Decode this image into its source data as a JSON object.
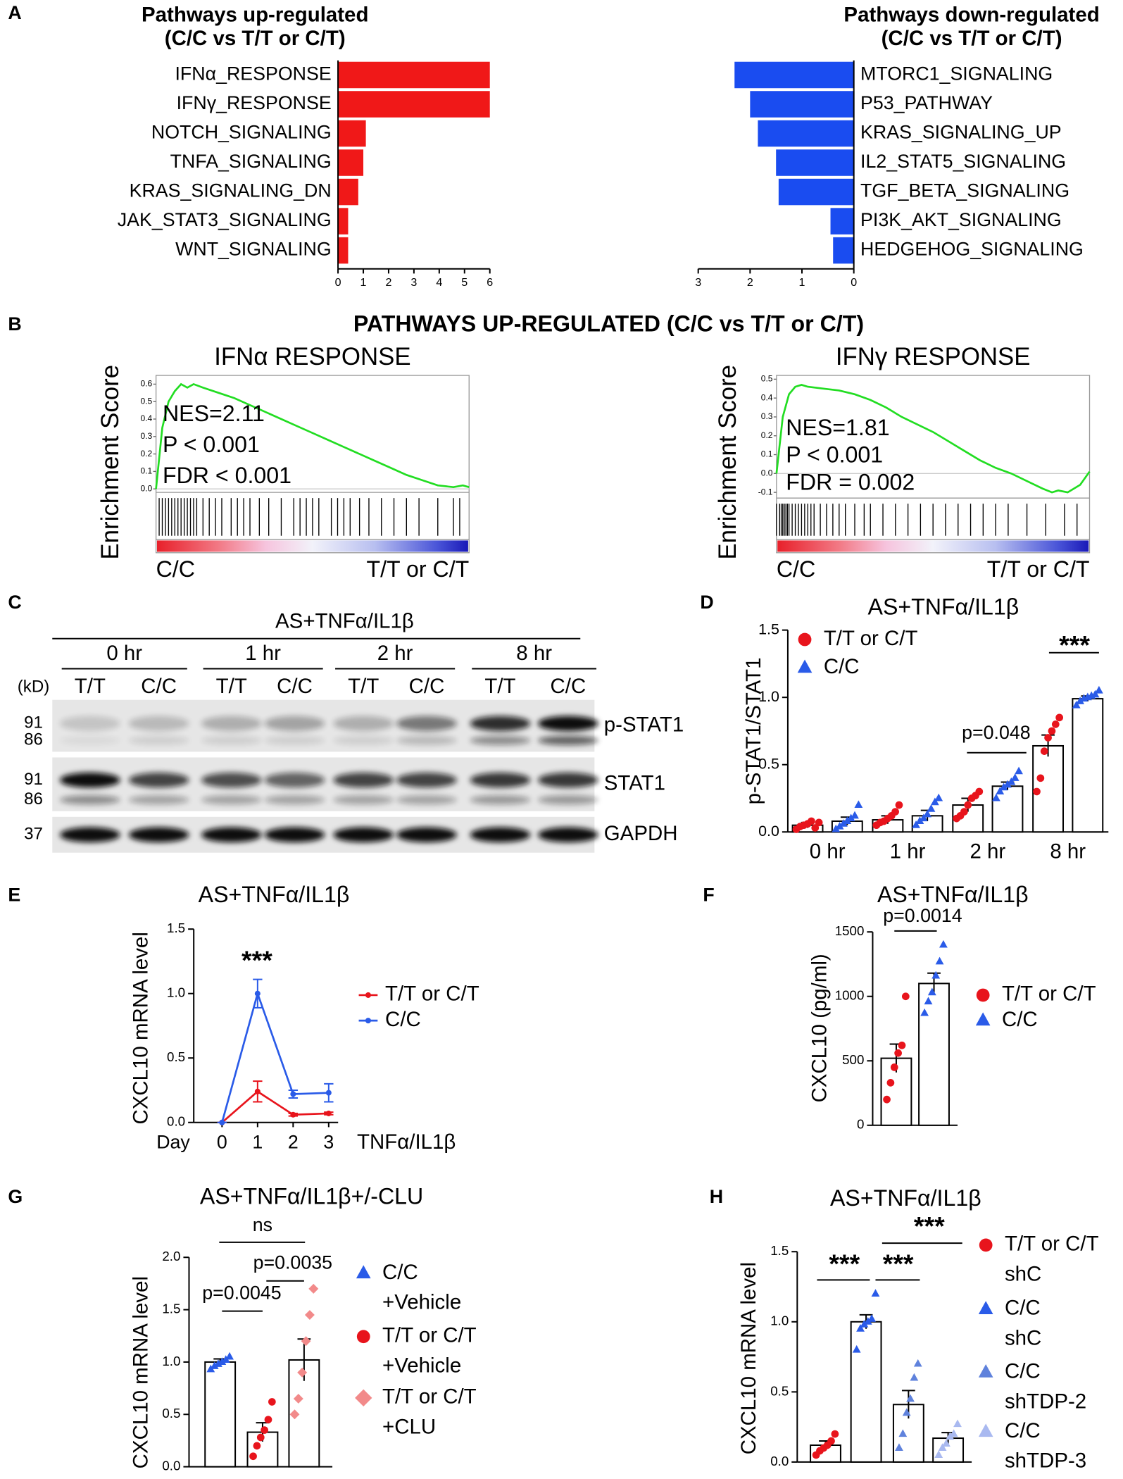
{
  "chart_data": [
    {
      "panel": "A",
      "type": "bar",
      "orientation": "horizontal",
      "title": [
        "Pathways up-regulated",
        "(C/C vs T/T or C/T)"
      ],
      "categories": [
        "IFNα_RESPONSE",
        "IFNγ_RESPONSE",
        "NOTCH_SIGNALING",
        "TNFA_SIGNALING",
        "KRAS_SIGNALING_DN",
        "JAK_STAT3_SIGNALING",
        "WNT_SIGNALING"
      ],
      "values": [
        6,
        6,
        1.1,
        1.0,
        0.8,
        0.4,
        0.4
      ],
      "color": "#f01818",
      "xlim": [
        0,
        6
      ],
      "xticks": [
        0,
        1,
        2,
        3,
        4,
        5,
        6
      ]
    },
    {
      "type": "bar",
      "orientation": "horizontal",
      "title": [
        "Pathways down-regulated",
        "(C/C vs T/T or C/T)"
      ],
      "categories": [
        "MTORC1_SIGNALING",
        "P53_PATHWAY",
        "KRAS_SIGNALING_UP",
        "IL2_STAT5_SIGNALING",
        "TGF_BETA_SIGNALING",
        "PI3K_AKT_SIGNALING",
        "HEDGEHOG_SIGNALING"
      ],
      "values": [
        2.3,
        2.0,
        1.85,
        1.5,
        1.45,
        0.45,
        0.4
      ],
      "color": "#1a4cf0",
      "xlim": [
        3,
        0
      ],
      "xticks": [
        3,
        2,
        1,
        0
      ]
    },
    {
      "panel": "B",
      "header": "PATHWAYS UP-REGULATED (C/C vs T/T or C/T)",
      "type": "gsea",
      "title": "IFNα RESPONSE",
      "ylabel": "Enrichment Score",
      "annotations": [
        "NES=2.11",
        "P < 0.001",
        "FDR < 0.001"
      ],
      "x_labels": [
        "C/C",
        "T/T or C/T"
      ],
      "color": "#22dd22",
      "ylim": [
        -0.02,
        0.65
      ],
      "yticks": [
        {
          "value": 0,
          "label": "0.0"
        },
        0.1,
        0.2,
        0.3,
        0.4,
        0.5,
        0.6
      ],
      "x": [
        0,
        2,
        4,
        6,
        8,
        10,
        12,
        15,
        20,
        25,
        30,
        35,
        40,
        45,
        50,
        55,
        60,
        65,
        70,
        75,
        80,
        85,
        90,
        95,
        98,
        100
      ],
      "es": [
        0,
        0.35,
        0.5,
        0.56,
        0.6,
        0.58,
        0.6,
        0.58,
        0.55,
        0.52,
        0.48,
        0.44,
        0.4,
        0.36,
        0.32,
        0.28,
        0.24,
        0.2,
        0.16,
        0.12,
        0.08,
        0.05,
        0.02,
        0.01,
        0.02,
        0.01
      ],
      "hits": [
        1,
        2,
        3,
        4,
        5,
        6,
        7,
        8,
        9,
        10,
        11,
        12,
        13,
        15,
        17,
        19,
        21,
        24,
        26,
        28,
        30,
        33,
        36,
        40,
        44,
        46,
        48,
        50,
        52,
        56,
        58,
        60,
        62,
        65,
        68,
        72,
        76,
        80,
        84,
        90,
        95,
        97
      ]
    },
    {
      "type": "gsea",
      "title": "IFNγ RESPONSE",
      "ylabel": "Enrichment Score",
      "annotations": [
        "NES=1.81",
        "P < 0.001",
        "FDR = 0.002"
      ],
      "x_labels": [
        "C/C",
        "T/T or C/T"
      ],
      "color": "#22dd22",
      "ylim": [
        -0.13,
        0.52
      ],
      "yticks": [
        -0.1,
        {
          "value": 0,
          "label": "0.0"
        },
        0.1,
        0.2,
        0.3,
        0.4,
        0.5
      ],
      "x": [
        0,
        2,
        4,
        6,
        8,
        10,
        15,
        20,
        25,
        30,
        35,
        40,
        45,
        50,
        55,
        60,
        65,
        70,
        75,
        80,
        85,
        88,
        90,
        93,
        95,
        97,
        100
      ],
      "es": [
        0,
        0.3,
        0.42,
        0.46,
        0.47,
        0.46,
        0.45,
        0.44,
        0.42,
        0.39,
        0.35,
        0.3,
        0.26,
        0.22,
        0.17,
        0.12,
        0.07,
        0.03,
        0,
        -0.04,
        -0.08,
        -0.1,
        -0.09,
        -0.1,
        -0.08,
        -0.06,
        0.01
      ],
      "hits": [
        0,
        1,
        1.5,
        2,
        2.5,
        3,
        3.5,
        4,
        5,
        6,
        7,
        8,
        9,
        10,
        11,
        12,
        14,
        16,
        18,
        20,
        22,
        25,
        28,
        30,
        34,
        38,
        42,
        46,
        50,
        54,
        58,
        62,
        66,
        70,
        74,
        80,
        86,
        92,
        96
      ]
    },
    {
      "panel": "C",
      "type": "blot",
      "header": "AS+TNFα/IL1β",
      "timepoints": [
        "0 hr",
        "1 hr",
        "2 hr",
        "8 hr"
      ],
      "lanes": [
        "T/T",
        "C/C",
        "T/T",
        "C/C",
        "T/T",
        "C/C",
        "T/T",
        "C/C"
      ],
      "kd_unit": "(kD)",
      "rows": [
        {
          "name": "p-STAT1",
          "kd": [
            "91",
            "86"
          ]
        },
        {
          "name": "STAT1",
          "kd": [
            "91",
            "86"
          ]
        },
        {
          "name": "GAPDH",
          "kd": [
            "37"
          ]
        }
      ]
    },
    {
      "panel": "D",
      "type": "bar",
      "title": "AS+TNFα/IL1β",
      "ylabel": "p-STAT1/STAT1",
      "categories": [
        "0 hr",
        "1 hr",
        "2 hr",
        "8 hr"
      ],
      "ylim": [
        0,
        1.5
      ],
      "yticks": [
        {
          "value": 0,
          "label": "0.0"
        },
        0.5,
        {
          "value": 1,
          "label": "1.0"
        },
        1.5
      ],
      "annotations": [
        "p=0.048",
        "***"
      ],
      "series": [
        {
          "name": "T/T or C/T",
          "color": "#e8141c",
          "marker": "circle",
          "values": [
            0.05,
            0.09,
            0.2,
            0.64
          ],
          "errors": [
            0.02,
            0.03,
            0.05,
            0.08
          ],
          "points": [
            [
              0.02,
              0.04,
              0.05,
              0.06,
              0.08,
              0.03,
              0.07
            ],
            [
              0.05,
              0.07,
              0.08,
              0.1,
              0.12,
              0.15,
              0.2
            ],
            [
              0.1,
              0.12,
              0.15,
              0.2,
              0.25,
              0.27,
              0.3
            ],
            [
              0.3,
              0.4,
              0.6,
              0.7,
              0.75,
              0.8,
              0.85
            ]
          ]
        },
        {
          "name": "C/C",
          "color": "#2a5be8",
          "marker": "triangle",
          "values": [
            0.08,
            0.12,
            0.34,
            0.99
          ],
          "errors": [
            0.03,
            0.04,
            0.03,
            0.02
          ],
          "points": [
            [
              0.02,
              0.04,
              0.06,
              0.08,
              0.1,
              0.12,
              0.2
            ],
            [
              0.05,
              0.08,
              0.1,
              0.13,
              0.17,
              0.22,
              0.25
            ],
            [
              0.25,
              0.3,
              0.33,
              0.35,
              0.37,
              0.4,
              0.45
            ],
            [
              0.94,
              0.97,
              0.99,
              1.0,
              1.01,
              1.02,
              1.05
            ]
          ]
        }
      ]
    },
    {
      "panel": "E",
      "type": "line",
      "title": "AS+TNFα/IL1β",
      "ylabel": "CXCL10 mRNA level",
      "xaxis_prefix": "Day",
      "xlabel": "TNFα/IL1β",
      "x": [
        0,
        1,
        2,
        3
      ],
      "xticks": [
        0,
        1,
        2,
        3
      ],
      "ylim": [
        0,
        1.5
      ],
      "yticks": [
        {
          "value": 0,
          "label": "0.0"
        },
        0.5,
        {
          "value": 1,
          "label": "1.0"
        },
        1.5
      ],
      "annotations": [
        "***"
      ],
      "series": [
        {
          "name": "T/T or C/T",
          "color": "#e8141c",
          "values": [
            0,
            0.24,
            0.06,
            0.07
          ],
          "errors": [
            0,
            0.08,
            0.01,
            0.01
          ]
        },
        {
          "name": "C/C",
          "color": "#2a5be8",
          "values": [
            0,
            1.0,
            0.22,
            0.23
          ],
          "errors": [
            0,
            0.11,
            0.03,
            0.07
          ]
        }
      ]
    },
    {
      "panel": "F",
      "type": "bar",
      "title": "AS+TNFα/IL1β",
      "ylabel": "CXCL10 (pg/ml)",
      "ylim": [
        0,
        1500
      ],
      "yticks": [
        0,
        500,
        1000,
        1500
      ],
      "annotations": [
        "p=0.0014"
      ],
      "series": [
        {
          "name": "T/T or C/T",
          "color": "#e8141c",
          "marker": "circle",
          "values": [
            520
          ],
          "errors": [
            110
          ],
          "points": [
            [
              200,
              330,
              450,
              560,
              620,
              1000
            ]
          ]
        },
        {
          "name": "C/C",
          "color": "#2a5be8",
          "marker": "triangle",
          "values": [
            1100
          ],
          "errors": [
            80
          ],
          "points": [
            [
              870,
              960,
              1030,
              1160,
              1270,
              1400
            ]
          ]
        }
      ]
    },
    {
      "panel": "G",
      "type": "bar",
      "title": "AS+TNFα/IL1β+/-CLU",
      "ylabel": "CXCL10 mRNA level",
      "ylim": [
        0,
        2
      ],
      "yticks": [
        {
          "value": 0,
          "label": "0.0"
        },
        0.5,
        {
          "value": 1,
          "label": "1.0"
        },
        1.5,
        {
          "value": 2,
          "label": "2.0"
        }
      ],
      "annotations": [
        "p=0.0045",
        "p=0.0035",
        "ns"
      ],
      "series": [
        {
          "name": [
            "C/C",
            "+Vehicle"
          ],
          "color": "#2a5be8",
          "marker": "triangle",
          "values": [
            1.0
          ],
          "errors": [
            0.03
          ],
          "points": [
            [
              0.93,
              0.96,
              0.98,
              1.0,
              1.02,
              1.05
            ]
          ]
        },
        {
          "name": [
            "T/T or C/T",
            "+Vehicle"
          ],
          "color": "#e8141c",
          "marker": "circle",
          "values": [
            0.33
          ],
          "errors": [
            0.09
          ],
          "points": [
            [
              0.1,
              0.2,
              0.28,
              0.35,
              0.45,
              0.62
            ]
          ]
        },
        {
          "name": [
            "T/T or C/T",
            "+CLU"
          ],
          "color": "#f28a8a",
          "marker": "diamond",
          "values": [
            1.02
          ],
          "errors": [
            0.2
          ],
          "points": [
            [
              0.5,
              0.65,
              0.9,
              1.2,
              1.45,
              1.7
            ]
          ]
        }
      ]
    },
    {
      "panel": "H",
      "type": "bar",
      "title": "AS+TNFα/IL1β",
      "ylabel": "CXCL10 mRNA level",
      "ylim": [
        0,
        1.5
      ],
      "yticks": [
        {
          "value": 0,
          "label": "0.0"
        },
        0.5,
        {
          "value": 1,
          "label": "1.0"
        },
        1.5
      ],
      "annotations": [
        "***",
        "***",
        "***"
      ],
      "series": [
        {
          "name": [
            "T/T or C/T",
            "shC"
          ],
          "color": "#e8141c",
          "marker": "circle",
          "values": [
            0.12
          ],
          "errors": [
            0.03
          ],
          "points": [
            [
              0.05,
              0.08,
              0.1,
              0.12,
              0.15,
              0.2
            ]
          ]
        },
        {
          "name": [
            "C/C",
            "shC"
          ],
          "color": "#2a5be8",
          "marker": "triangle",
          "values": [
            1.0
          ],
          "errors": [
            0.05
          ],
          "points": [
            [
              0.8,
              0.95,
              0.98,
              1.0,
              1.02,
              1.2
            ]
          ]
        },
        {
          "name": [
            "C/C",
            "shTDP-2"
          ],
          "color": "#5f82dc",
          "marker": "triangle",
          "values": [
            0.41
          ],
          "errors": [
            0.1
          ],
          "points": [
            [
              0.1,
              0.2,
              0.35,
              0.45,
              0.6,
              0.7
            ]
          ]
        },
        {
          "name": [
            "C/C",
            "shTDP-3"
          ],
          "color": "#a9b9f0",
          "marker": "triangle",
          "values": [
            0.17
          ],
          "errors": [
            0.04
          ],
          "points": [
            [
              0.05,
              0.1,
              0.13,
              0.18,
              0.2,
              0.27
            ]
          ]
        }
      ]
    }
  ]
}
